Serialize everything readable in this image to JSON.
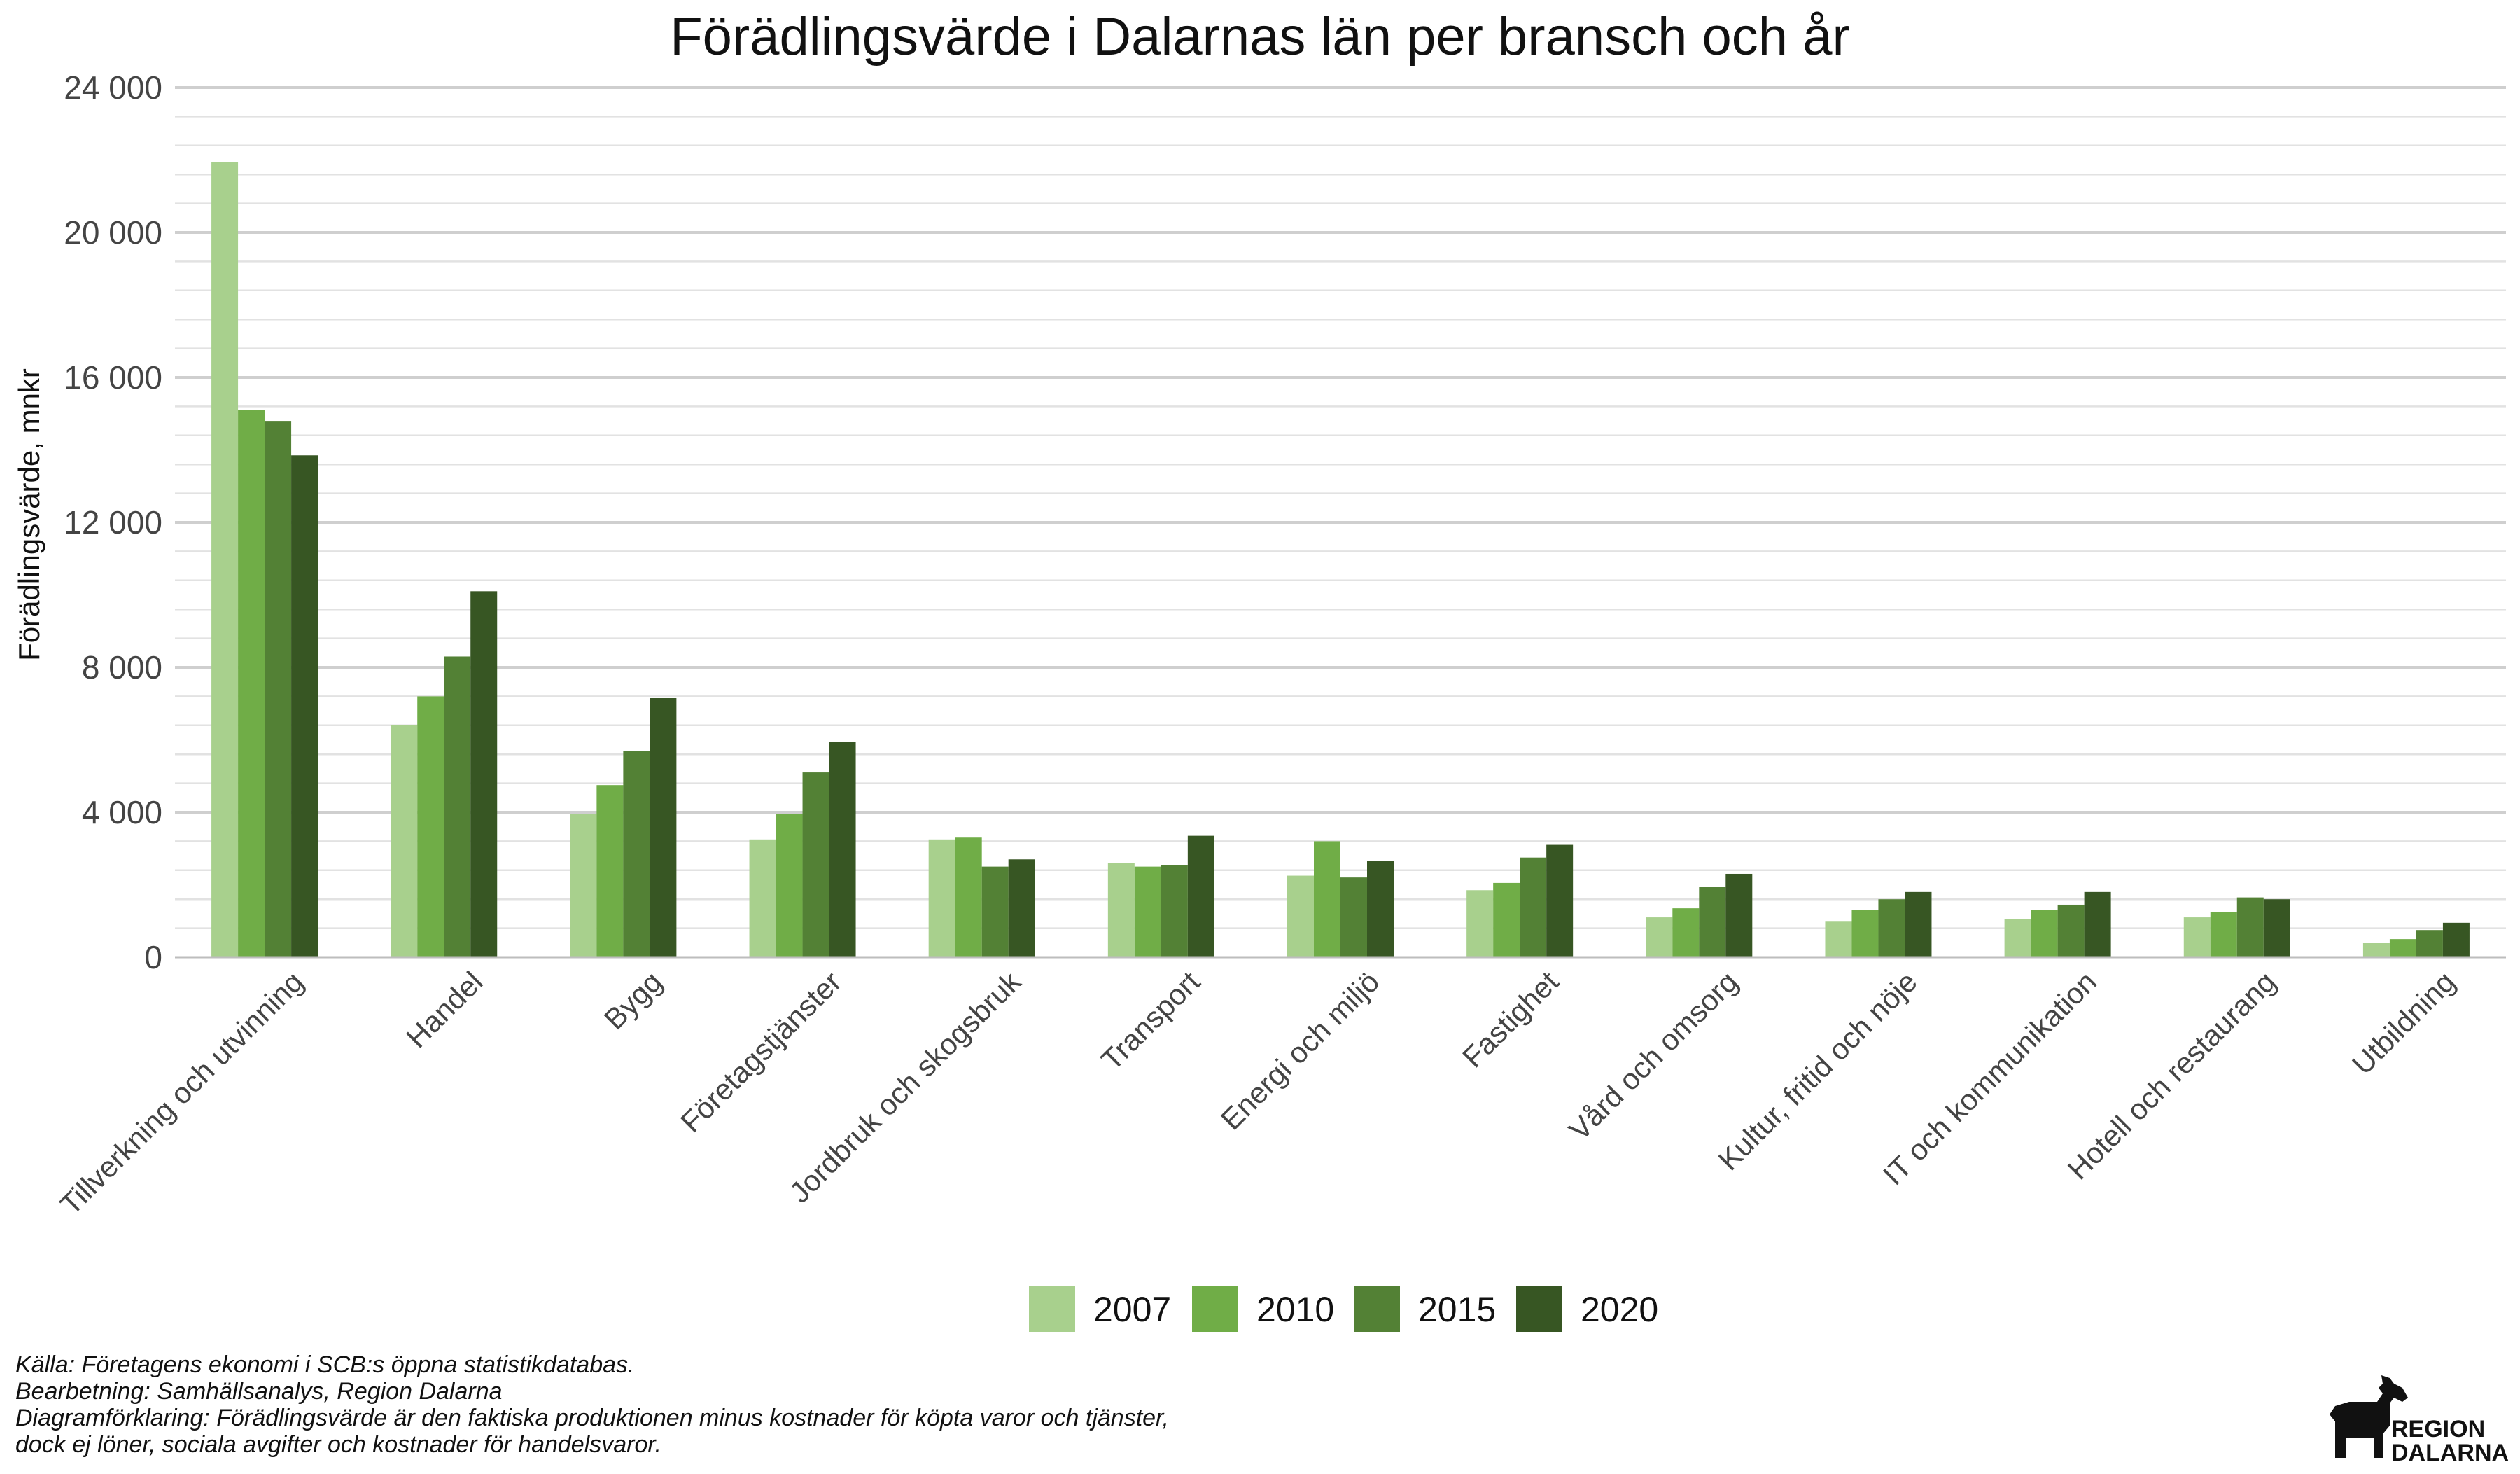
{
  "chart_data": {
    "type": "bar",
    "title": "Förädlingsvärde i Dalarnas län per bransch och år",
    "ylabel": "Förädlingsvärde, mnkr",
    "xlabel": "",
    "ylim": [
      0,
      24000
    ],
    "yticks": [
      0,
      4000,
      8000,
      12000,
      16000,
      20000,
      24000
    ],
    "ytick_labels": [
      "0",
      "4 000",
      "8 000",
      "12 000",
      "16 000",
      "20 000",
      "24 000"
    ],
    "minor_grid_step": 800,
    "grid": true,
    "legend_position": "bottom",
    "categories": [
      "Tillverkning och utvinning",
      "Handel",
      "Bygg",
      "Företagstjänster",
      "Jordbruk och skogsbruk",
      "Transport",
      "Energi och miljö",
      "Fastighet",
      "Vård och omsorg",
      "Kultur, fritid och nöje",
      "IT och kommunikation",
      "Hotell och restaurang",
      "Utbildning"
    ],
    "series": [
      {
        "name": "2007",
        "color": "#a8d08d",
        "values": [
          21950,
          6400,
          3950,
          3250,
          3250,
          2600,
          2250,
          1850,
          1100,
          1000,
          1050,
          1100,
          400
        ]
      },
      {
        "name": "2010",
        "color": "#70ad47",
        "values": [
          15100,
          7200,
          4750,
          3950,
          3300,
          2500,
          3200,
          2050,
          1350,
          1300,
          1300,
          1250,
          500
        ]
      },
      {
        "name": "2015",
        "color": "#538135",
        "values": [
          14800,
          8300,
          5700,
          5100,
          2500,
          2550,
          2200,
          2750,
          1950,
          1600,
          1450,
          1650,
          750
        ]
      },
      {
        "name": "2020",
        "color": "#375623",
        "values": [
          13850,
          10100,
          7150,
          5950,
          2700,
          3350,
          2650,
          3100,
          2300,
          1800,
          1800,
          1600,
          950
        ]
      }
    ]
  },
  "footer": {
    "line1": "Källa: Företagens ekonomi i SCB:s öppna statistikdatabas.",
    "line2": "Bearbetning: Samhällsanalys, Region Dalarna",
    "line3": "Diagramförklaring: Förädlingsvärde är den faktiska produktionen minus kostnader för köpta varor och tjänster,",
    "line4": "dock ej löner, sociala avgifter och kostnader för handelsvaror."
  },
  "logo": {
    "icon": "dala-horse-icon",
    "line1": "REGION",
    "line2": "DALARNA"
  }
}
